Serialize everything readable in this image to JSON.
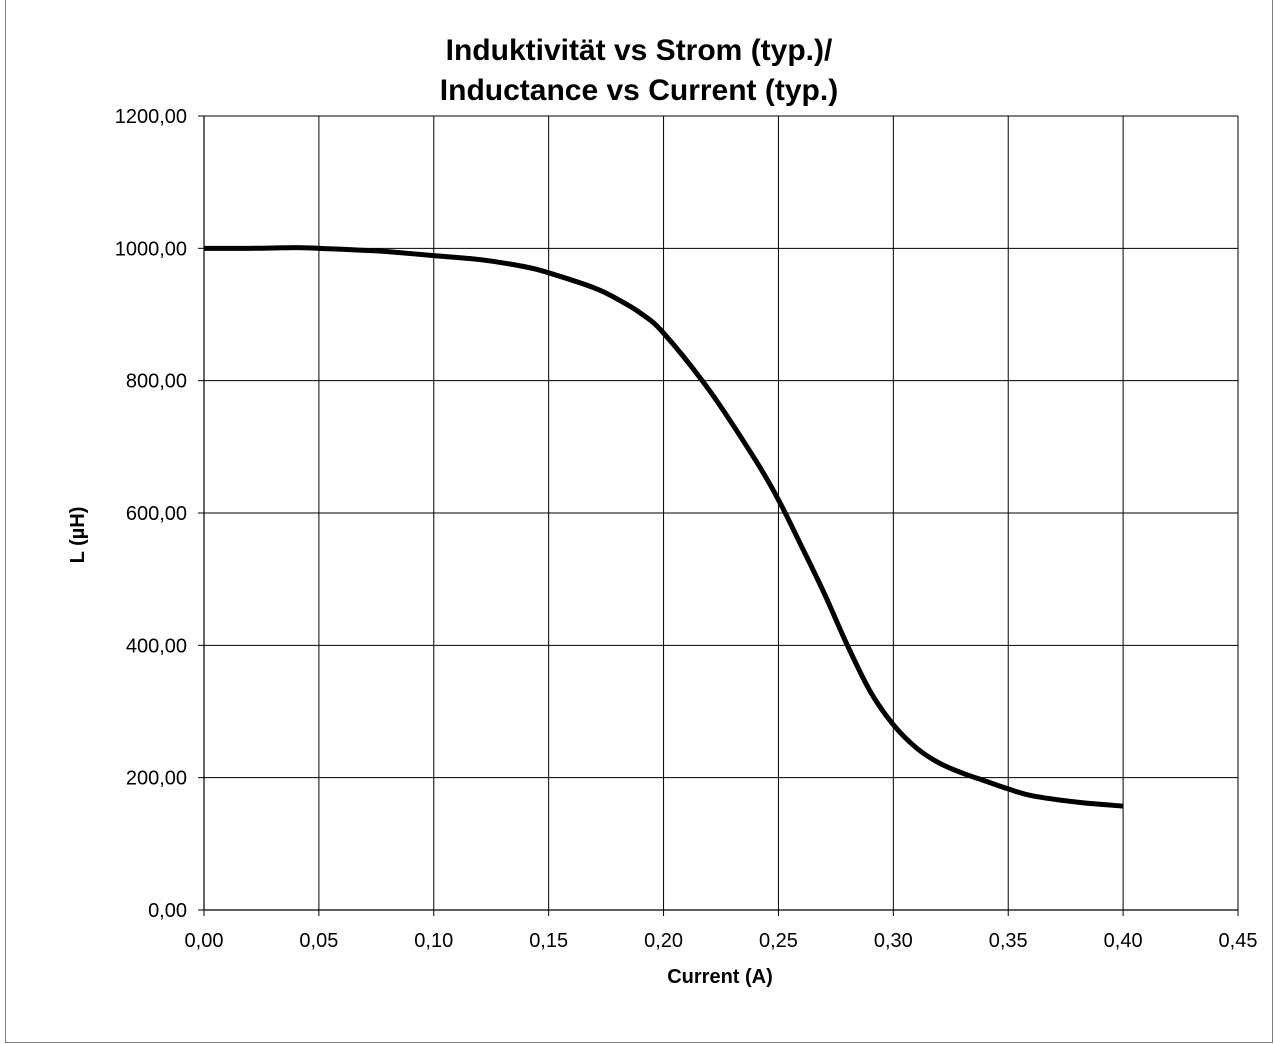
{
  "chart_data": {
    "type": "line",
    "title_line1": "Induktivität vs Strom (typ.)/",
    "title_line2": "Inductance vs Current (typ.)",
    "xlabel": "Current (A)",
    "ylabel": "L (µH)",
    "xlim": [
      0,
      0.45
    ],
    "ylim": [
      0,
      1200
    ],
    "x_ticks": [
      "0,00",
      "0,05",
      "0,10",
      "0,15",
      "0,20",
      "0,25",
      "0,30",
      "0,35",
      "0,40",
      "0,45"
    ],
    "y_ticks": [
      "0,00",
      "200,00",
      "400,00",
      "600,00",
      "800,00",
      "1000,00",
      "1200,00"
    ],
    "grid": true,
    "legend": "none",
    "series": [
      {
        "color": "#000000",
        "x": [
          0.0,
          0.02,
          0.04,
          0.05,
          0.07,
          0.08,
          0.1,
          0.12,
          0.14,
          0.15,
          0.17,
          0.18,
          0.19,
          0.2,
          0.22,
          0.24,
          0.25,
          0.26,
          0.27,
          0.28,
          0.29,
          0.3,
          0.31,
          0.32,
          0.33,
          0.34,
          0.35,
          0.36,
          0.38,
          0.4
        ],
        "y": [
          1000,
          1000,
          1001,
          1000,
          997,
          995,
          989,
          983,
          972,
          963,
          940,
          923,
          902,
          872,
          785,
          680,
          620,
          550,
          478,
          400,
          330,
          280,
          245,
          222,
          207,
          195,
          183,
          173,
          163,
          157
        ]
      }
    ]
  }
}
